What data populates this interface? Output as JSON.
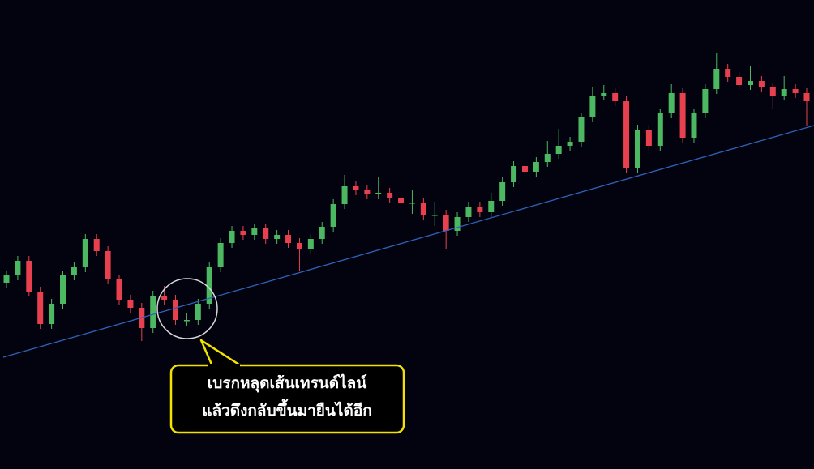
{
  "chart_data": {
    "type": "candlestick",
    "open": [
      230,
      239,
      257,
      219,
      179,
      204,
      239,
      249,
      284,
      269,
      234,
      209,
      199,
      174,
      214,
      209,
      184,
      184,
      204,
      249,
      279,
      294,
      289,
      297,
      284,
      289,
      279,
      271,
      284,
      299,
      327,
      349,
      344,
      339,
      341,
      334,
      329,
      329,
      314,
      314,
      294,
      311,
      324,
      317,
      331,
      354,
      374,
      367,
      379,
      389,
      399,
      404,
      434,
      461,
      464,
      454,
      371,
      419,
      399,
      439,
      464,
      409,
      439,
      469,
      494,
      484,
      474,
      479,
      471,
      461,
      469,
      464
    ],
    "high": [
      245,
      263,
      263,
      225,
      210,
      245,
      255,
      290,
      290,
      275,
      240,
      215,
      205,
      220,
      226,
      215,
      192,
      210,
      255,
      285,
      300,
      300,
      303,
      303,
      295,
      295,
      285,
      290,
      305,
      333,
      363,
      355,
      350,
      361,
      347,
      340,
      345,
      335,
      330,
      320,
      317,
      330,
      330,
      341,
      360,
      380,
      380,
      385,
      405,
      420,
      410,
      440,
      471,
      474,
      470,
      460,
      425,
      425,
      445,
      475,
      470,
      445,
      475,
      513,
      500,
      490,
      497,
      485,
      477,
      485,
      475,
      470
    ],
    "low": [
      224,
      233,
      213,
      173,
      173,
      198,
      233,
      243,
      263,
      228,
      203,
      193,
      158,
      168,
      203,
      178,
      176,
      178,
      198,
      243,
      273,
      283,
      283,
      278,
      278,
      273,
      245,
      265,
      278,
      293,
      321,
      338,
      333,
      333,
      328,
      323,
      315,
      308,
      300,
      272,
      288,
      305,
      311,
      311,
      325,
      348,
      361,
      361,
      373,
      383,
      393,
      398,
      428,
      455,
      448,
      365,
      365,
      393,
      393,
      433,
      403,
      403,
      433,
      463,
      478,
      468,
      468,
      465,
      445,
      455,
      458,
      424
    ],
    "close": [
      239,
      257,
      219,
      179,
      204,
      239,
      249,
      284,
      269,
      234,
      209,
      199,
      174,
      214,
      209,
      184,
      184,
      204,
      249,
      279,
      294,
      289,
      297,
      284,
      289,
      279,
      271,
      284,
      299,
      327,
      349,
      344,
      339,
      341,
      334,
      329,
      329,
      314,
      314,
      294,
      311,
      324,
      317,
      331,
      354,
      374,
      367,
      379,
      389,
      399,
      404,
      434,
      461,
      464,
      454,
      371,
      419,
      399,
      439,
      464,
      409,
      439,
      469,
      494,
      484,
      474,
      479,
      471,
      461,
      469,
      464,
      454
    ],
    "ylim": [
      0,
      579
    ],
    "up_color": "#4cb862",
    "down_color": "#e8404f",
    "annotation": [
      "เบรกหลุดเส้นเทรนด์ไลน์",
      "แล้วดึงกลับขึ้นมายืนได้อีก"
    ]
  }
}
